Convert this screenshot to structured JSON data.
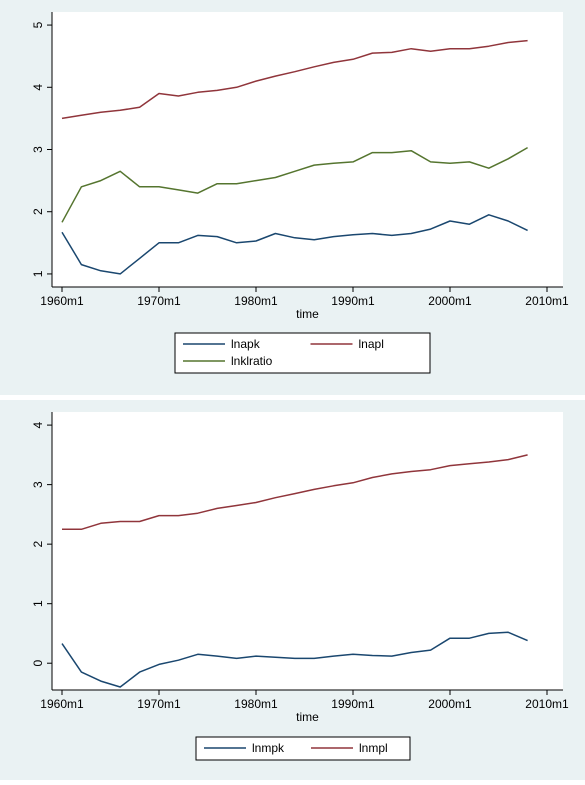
{
  "chart_data": [
    {
      "type": "line",
      "x_label": "time",
      "x": [
        1960,
        1962,
        1964,
        1966,
        1968,
        1970,
        1972,
        1974,
        1976,
        1978,
        1980,
        1982,
        1984,
        1986,
        1988,
        1990,
        1992,
        1994,
        1996,
        1998,
        2000,
        2002,
        2004,
        2006,
        2008
      ],
      "series": [
        {
          "name": "lnapk",
          "color": "#1a476f",
          "values": [
            1.67,
            1.15,
            1.05,
            1.0,
            1.25,
            1.5,
            1.5,
            1.62,
            1.6,
            1.5,
            1.53,
            1.65,
            1.58,
            1.55,
            1.6,
            1.63,
            1.65,
            1.62,
            1.65,
            1.72,
            1.85,
            1.8,
            1.95,
            1.85,
            1.7
          ]
        },
        {
          "name": "lnapl",
          "color": "#90353b",
          "values": [
            3.5,
            3.55,
            3.6,
            3.63,
            3.68,
            3.9,
            3.86,
            3.92,
            3.95,
            4.0,
            4.1,
            4.18,
            4.25,
            4.33,
            4.4,
            4.45,
            4.55,
            4.56,
            4.62,
            4.58,
            4.62,
            4.62,
            4.66,
            4.72,
            4.75
          ]
        },
        {
          "name": "lnklratio",
          "color": "#55752f",
          "values": [
            1.83,
            2.4,
            2.5,
            2.65,
            2.4,
            2.4,
            2.35,
            2.3,
            2.45,
            2.45,
            2.5,
            2.55,
            2.65,
            2.75,
            2.78,
            2.8,
            2.95,
            2.95,
            2.98,
            2.8,
            2.78,
            2.8,
            2.7,
            2.85,
            3.03
          ]
        }
      ],
      "xlim": [
        1958.97,
        2011.65
      ],
      "xticks": [
        {
          "value": 1960,
          "label": "1960m1"
        },
        {
          "value": 1970,
          "label": "1970m1"
        },
        {
          "value": 1980,
          "label": "1980m1"
        },
        {
          "value": 1990,
          "label": "1990m1"
        },
        {
          "value": 2000,
          "label": "2000m1"
        },
        {
          "value": 2010,
          "label": "2010m1"
        }
      ],
      "ylim": [
        0.79,
        5.21
      ],
      "yticks": [
        1,
        2,
        3,
        4,
        5
      ]
    },
    {
      "type": "line",
      "x_label": "time",
      "x": [
        1960,
        1962,
        1964,
        1966,
        1968,
        1970,
        1972,
        1974,
        1976,
        1978,
        1980,
        1982,
        1984,
        1986,
        1988,
        1990,
        1992,
        1994,
        1996,
        1998,
        2000,
        2002,
        2004,
        2006,
        2008
      ],
      "series": [
        {
          "name": "lnmpk",
          "color": "#1a476f",
          "values": [
            0.33,
            -0.15,
            -0.3,
            -0.4,
            -0.15,
            -0.02,
            0.05,
            0.15,
            0.12,
            0.08,
            0.12,
            0.1,
            0.08,
            0.08,
            0.12,
            0.15,
            0.13,
            0.12,
            0.18,
            0.22,
            0.42,
            0.42,
            0.5,
            0.52,
            0.38
          ]
        },
        {
          "name": "lnmpl",
          "color": "#90353b",
          "values": [
            2.25,
            2.25,
            2.35,
            2.38,
            2.38,
            2.48,
            2.48,
            2.52,
            2.6,
            2.65,
            2.7,
            2.78,
            2.85,
            2.92,
            2.98,
            3.03,
            3.12,
            3.18,
            3.22,
            3.25,
            3.32,
            3.35,
            3.38,
            3.42,
            3.5
          ]
        }
      ],
      "xlim": [
        1958.97,
        2011.65
      ],
      "xticks": [
        {
          "value": 1960,
          "label": "1960m1"
        },
        {
          "value": 1970,
          "label": "1970m1"
        },
        {
          "value": 1980,
          "label": "1980m1"
        },
        {
          "value": 1990,
          "label": "1990m1"
        },
        {
          "value": 2000,
          "label": "2000m1"
        },
        {
          "value": 2010,
          "label": "2010m1"
        }
      ],
      "ylim": [
        -0.45,
        4.22
      ],
      "yticks": [
        0,
        1,
        2,
        3,
        4
      ]
    }
  ]
}
